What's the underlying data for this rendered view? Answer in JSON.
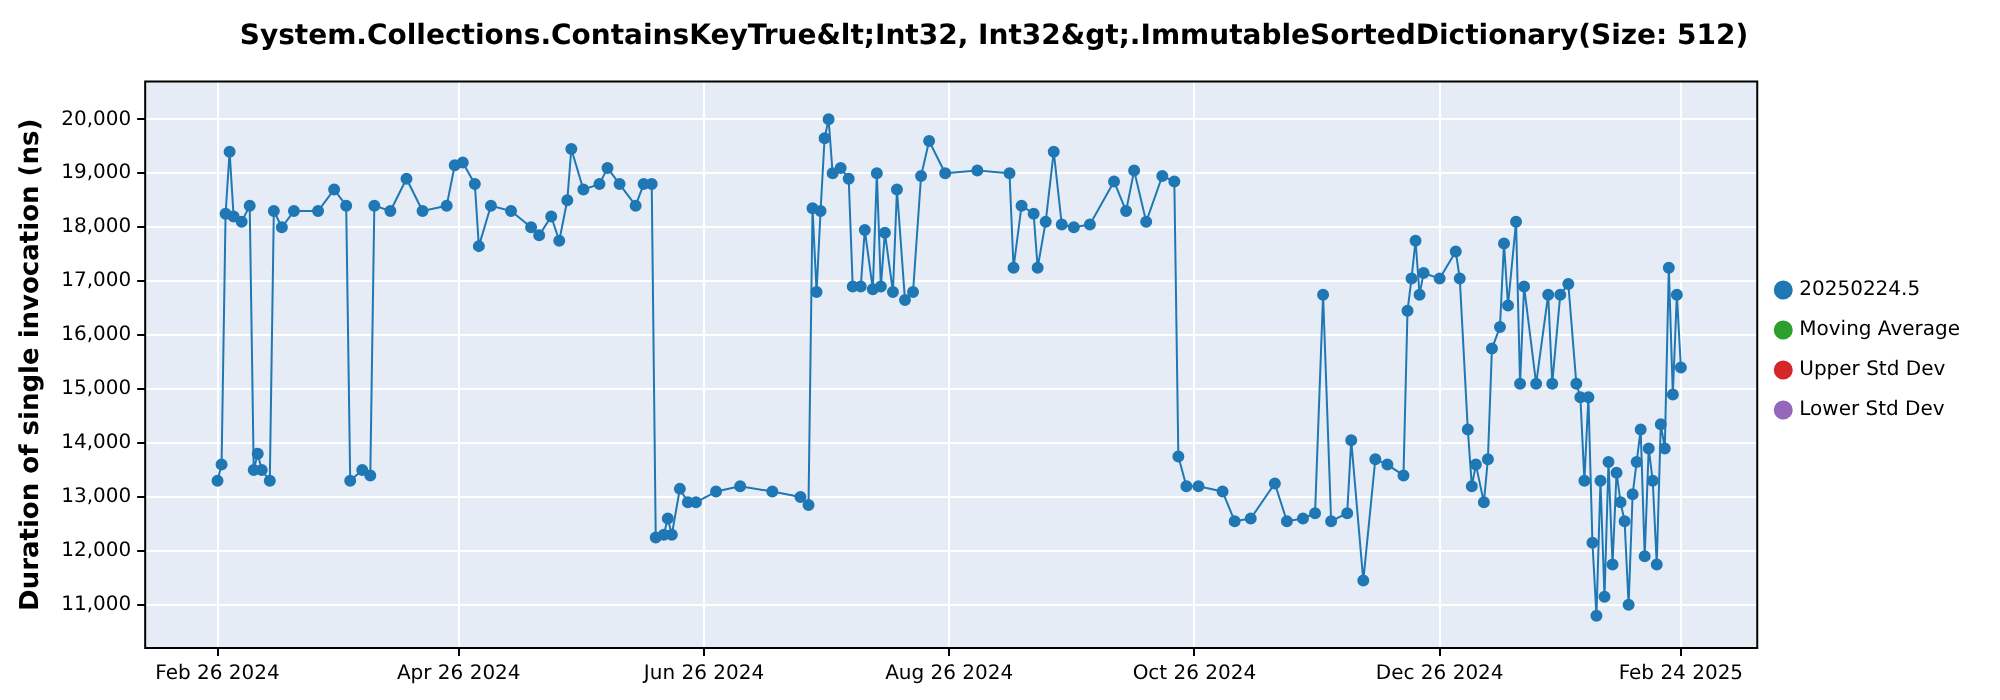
{
  "chart_data": {
    "type": "line",
    "title": "System.Collections.ContainsKeyTrue&lt;Int32, Int32&gt;.ImmutableSortedDictionary(Size: 512)",
    "ylabel": "Duration of single invocation (ns)",
    "xlim": [
      "2024-02-08",
      "2025-03-15"
    ],
    "xticks": [
      {
        "value": "2024-02-26",
        "label": "Feb 26 2024"
      },
      {
        "value": "2024-04-26",
        "label": "Apr 26 2024"
      },
      {
        "value": "2024-06-26",
        "label": "Jun 26 2024"
      },
      {
        "value": "2024-08-26",
        "label": "Aug 26 2024"
      },
      {
        "value": "2024-10-26",
        "label": "Oct 26 2024"
      },
      {
        "value": "2024-12-26",
        "label": "Dec 26 2024"
      },
      {
        "value": "2025-02-24",
        "label": "Feb 24 2025"
      }
    ],
    "ylim": [
      10200,
      20700
    ],
    "yticks": [
      {
        "value": 11000,
        "label": "11,000"
      },
      {
        "value": 12000,
        "label": "12,000"
      },
      {
        "value": 13000,
        "label": "13,000"
      },
      {
        "value": 14000,
        "label": "14,000"
      },
      {
        "value": 15000,
        "label": "15,000"
      },
      {
        "value": 16000,
        "label": "16,000"
      },
      {
        "value": 17000,
        "label": "17,000"
      },
      {
        "value": 18000,
        "label": "18,000"
      },
      {
        "value": 19000,
        "label": "19,000"
      },
      {
        "value": 20000,
        "label": "20,000"
      }
    ],
    "grid": true,
    "legend": "right",
    "marker": "circle",
    "line_style": "solid",
    "x": [
      "2024-02-26",
      "2024-02-27",
      "2024-02-28",
      "2024-02-29",
      "2024-03-01",
      "2024-03-03",
      "2024-03-05",
      "2024-03-06",
      "2024-03-07",
      "2024-03-08",
      "2024-03-10",
      "2024-03-11",
      "2024-03-13",
      "2024-03-16",
      "2024-03-22",
      "2024-03-26",
      "2024-03-29",
      "2024-03-30",
      "2024-04-02",
      "2024-04-04",
      "2024-04-05",
      "2024-04-09",
      "2024-04-13",
      "2024-04-17",
      "2024-04-23",
      "2024-04-25",
      "2024-04-27",
      "2024-04-30",
      "2024-05-01",
      "2024-05-04",
      "2024-05-09",
      "2024-05-14",
      "2024-05-16",
      "2024-05-19",
      "2024-05-21",
      "2024-05-23",
      "2024-05-24",
      "2024-05-27",
      "2024-05-31",
      "2024-06-02",
      "2024-06-05",
      "2024-06-09",
      "2024-06-11",
      "2024-06-13",
      "2024-06-14",
      "2024-06-16",
      "2024-06-17",
      "2024-06-18",
      "2024-06-20",
      "2024-06-22",
      "2024-06-24",
      "2024-06-29",
      "2024-07-05",
      "2024-07-13",
      "2024-07-20",
      "2024-07-22",
      "2024-07-23",
      "2024-07-24",
      "2024-07-25",
      "2024-07-26",
      "2024-07-27",
      "2024-07-28",
      "2024-07-30",
      "2024-08-01",
      "2024-08-02",
      "2024-08-04",
      "2024-08-05",
      "2024-08-07",
      "2024-08-08",
      "2024-08-09",
      "2024-08-10",
      "2024-08-12",
      "2024-08-13",
      "2024-08-15",
      "2024-08-17",
      "2024-08-19",
      "2024-08-21",
      "2024-08-25",
      "2024-09-02",
      "2024-09-10",
      "2024-09-11",
      "2024-09-13",
      "2024-09-16",
      "2024-09-17",
      "2024-09-19",
      "2024-09-21",
      "2024-09-23",
      "2024-09-26",
      "2024-09-30",
      "2024-10-06",
      "2024-10-09",
      "2024-10-11",
      "2024-10-14",
      "2024-10-18",
      "2024-10-21",
      "2024-10-22",
      "2024-10-24",
      "2024-10-27",
      "2024-11-02",
      "2024-11-05",
      "2024-11-09",
      "2024-11-15",
      "2024-11-18",
      "2024-11-22",
      "2024-11-25",
      "2024-11-27",
      "2024-11-29",
      "2024-12-03",
      "2024-12-04",
      "2024-12-07",
      "2024-12-10",
      "2024-12-13",
      "2024-12-17",
      "2024-12-18",
      "2024-12-19",
      "2024-12-20",
      "2024-12-21",
      "2024-12-22",
      "2024-12-26",
      "2024-12-30",
      "2024-12-31",
      "2025-01-02",
      "2025-01-03",
      "2025-01-04",
      "2025-01-06",
      "2025-01-07",
      "2025-01-08",
      "2025-01-10",
      "2025-01-11",
      "2025-01-12",
      "2025-01-14",
      "2025-01-15",
      "2025-01-16",
      "2025-01-19",
      "2025-01-22",
      "2025-01-23",
      "2025-01-25",
      "2025-01-27",
      "2025-01-29",
      "2025-01-30",
      "2025-01-31",
      "2025-02-01",
      "2025-02-02",
      "2025-02-03",
      "2025-02-04",
      "2025-02-05",
      "2025-02-06",
      "2025-02-07",
      "2025-02-08",
      "2025-02-09",
      "2025-02-10",
      "2025-02-11",
      "2025-02-12",
      "2025-02-13",
      "2025-02-14",
      "2025-02-15",
      "2025-02-16",
      "2025-02-17",
      "2025-02-18",
      "2025-02-19",
      "2025-02-20",
      "2025-02-21",
      "2025-02-22",
      "2025-02-23",
      "2025-02-24"
    ],
    "series": [
      {
        "name": "20250224.5",
        "color": "#1f77b4",
        "values": [
          13300,
          13600,
          18250,
          19400,
          18200,
          18100,
          18400,
          13500,
          13800,
          13500,
          13300,
          18300,
          18000,
          18300,
          18300,
          18700,
          18400,
          13300,
          13500,
          13400,
          18400,
          18300,
          18900,
          18300,
          18400,
          19150,
          19200,
          18800,
          17650,
          18400,
          18300,
          18000,
          17850,
          18200,
          17750,
          18500,
          19450,
          18700,
          18800,
          19100,
          18800,
          18400,
          18800,
          18800,
          12250,
          12300,
          12600,
          12300,
          13150,
          12900,
          12900,
          13100,
          13200,
          13100,
          13000,
          12850,
          18350,
          16800,
          18300,
          19650,
          20000,
          19000,
          19100,
          18900,
          16900,
          16900,
          17950,
          16850,
          19000,
          16900,
          17900,
          16800,
          18700,
          16650,
          16800,
          18950,
          19600,
          19000,
          19050,
          19000,
          17250,
          18400,
          18250,
          17250,
          18100,
          19400,
          18050,
          18000,
          18050,
          18850,
          18300,
          19050,
          18100,
          18950,
          18850,
          13750,
          13200,
          13200,
          13100,
          12550,
          12600,
          13250,
          12550,
          12600,
          12700,
          16750,
          12550,
          12700,
          14050,
          11450,
          13700,
          13600,
          13400,
          16450,
          17050,
          17750,
          16750,
          17150,
          17050,
          17550,
          17050,
          14250,
          13200,
          13600,
          12900,
          13700,
          15750,
          16150,
          17700,
          16550,
          18100,
          15100,
          16900,
          15100,
          16750,
          15100,
          16750,
          16950,
          15100,
          14850,
          13300,
          14850,
          12150,
          10800,
          13300,
          11150,
          13650,
          11750,
          13450,
          12900,
          12550,
          11000,
          13050,
          13650,
          14250,
          11900,
          13900,
          13300,
          11750,
          14350,
          13900,
          17250,
          14900,
          16750,
          15400
        ]
      },
      {
        "name": "Moving Average",
        "color": "#2ca02c",
        "values": [
          null,
          null,
          null,
          null,
          null,
          null,
          null,
          null,
          null,
          null,
          null,
          null,
          null,
          null,
          null,
          null,
          null,
          null,
          null,
          null,
          null,
          null,
          null,
          null,
          null,
          null,
          null,
          null,
          null,
          null,
          null,
          null,
          null,
          null,
          null,
          null,
          null,
          null,
          null,
          null,
          null,
          null,
          null,
          null,
          null,
          null,
          null,
          null,
          null,
          null,
          null,
          null,
          null,
          null,
          null,
          null,
          null,
          null,
          null,
          null,
          null,
          null,
          null,
          null,
          null,
          null,
          null,
          null,
          null,
          null,
          null,
          null,
          null,
          null,
          null,
          null,
          null,
          null,
          null,
          null,
          null,
          null,
          null,
          null,
          null,
          null,
          null,
          null,
          null,
          null,
          null,
          null,
          null,
          null,
          null,
          null,
          null,
          null,
          null,
          null,
          null,
          null,
          null,
          null,
          null,
          null,
          null,
          null,
          null,
          null,
          null,
          null,
          null,
          null,
          null,
          null,
          null,
          null,
          null,
          null,
          null,
          null,
          null,
          null,
          null,
          null,
          null,
          null,
          null,
          null,
          null,
          null,
          null,
          null,
          null,
          null,
          null,
          null,
          null,
          null,
          null,
          null,
          null,
          null,
          null,
          null,
          null,
          null,
          null,
          null,
          null,
          null,
          null,
          null,
          null,
          null,
          null,
          null,
          null,
          null,
          null,
          null,
          null,
          null,
          null
        ]
      },
      {
        "name": "Upper Std Dev",
        "color": "#d62728",
        "values": [
          null,
          null,
          null,
          null,
          null,
          null,
          null,
          null,
          null,
          null,
          null,
          null,
          null,
          null,
          null,
          null,
          null,
          null,
          null,
          null,
          null,
          null,
          null,
          null,
          null,
          null,
          null,
          null,
          null,
          null,
          null,
          null,
          null,
          null,
          null,
          null,
          null,
          null,
          null,
          null,
          null,
          null,
          null,
          null,
          null,
          null,
          null,
          null,
          null,
          null,
          null,
          null,
          null,
          null,
          null,
          null,
          null,
          null,
          null,
          null,
          null,
          null,
          null,
          null,
          null,
          null,
          null,
          null,
          null,
          null,
          null,
          null,
          null,
          null,
          null,
          null,
          null,
          null,
          null,
          null,
          null,
          null,
          null,
          null,
          null,
          null,
          null,
          null,
          null,
          null,
          null,
          null,
          null,
          null,
          null,
          null,
          null,
          null,
          null,
          null,
          null,
          null,
          null,
          null,
          null,
          null,
          null,
          null,
          null,
          null,
          null,
          null,
          null,
          null,
          null,
          null,
          null,
          null,
          null,
          null,
          null,
          null,
          null,
          null,
          null,
          null,
          null,
          null,
          null,
          null,
          null,
          null,
          null,
          null,
          null,
          null,
          null,
          null,
          null,
          null,
          null,
          null,
          null,
          null,
          null,
          null,
          null,
          null,
          null,
          null,
          null,
          null,
          null,
          null,
          null,
          null,
          null,
          null,
          null,
          null,
          null,
          null,
          null,
          null,
          null
        ]
      },
      {
        "name": "Lower Std Dev",
        "color": "#9467bd",
        "values": [
          null,
          null,
          null,
          null,
          null,
          null,
          null,
          null,
          null,
          null,
          null,
          null,
          null,
          null,
          null,
          null,
          null,
          null,
          null,
          null,
          null,
          null,
          null,
          null,
          null,
          null,
          null,
          null,
          null,
          null,
          null,
          null,
          null,
          null,
          null,
          null,
          null,
          null,
          null,
          null,
          null,
          null,
          null,
          null,
          null,
          null,
          null,
          null,
          null,
          null,
          null,
          null,
          null,
          null,
          null,
          null,
          null,
          null,
          null,
          null,
          null,
          null,
          null,
          null,
          null,
          null,
          null,
          null,
          null,
          null,
          null,
          null,
          null,
          null,
          null,
          null,
          null,
          null,
          null,
          null,
          null,
          null,
          null,
          null,
          null,
          null,
          null,
          null,
          null,
          null,
          null,
          null,
          null,
          null,
          null,
          null,
          null,
          null,
          null,
          null,
          null,
          null,
          null,
          null,
          null,
          null,
          null,
          null,
          null,
          null,
          null,
          null,
          null,
          null,
          null,
          null,
          null,
          null,
          null,
          null,
          null,
          null,
          null,
          null,
          null,
          null,
          null,
          null,
          null,
          null,
          null,
          null,
          null,
          null,
          null,
          null,
          null,
          null,
          null,
          null,
          null,
          null,
          null,
          null,
          null,
          null,
          null,
          null,
          null,
          null,
          null,
          null,
          null,
          null,
          null,
          null,
          null,
          null,
          null,
          null,
          null,
          null,
          null,
          null,
          null
        ]
      }
    ]
  }
}
